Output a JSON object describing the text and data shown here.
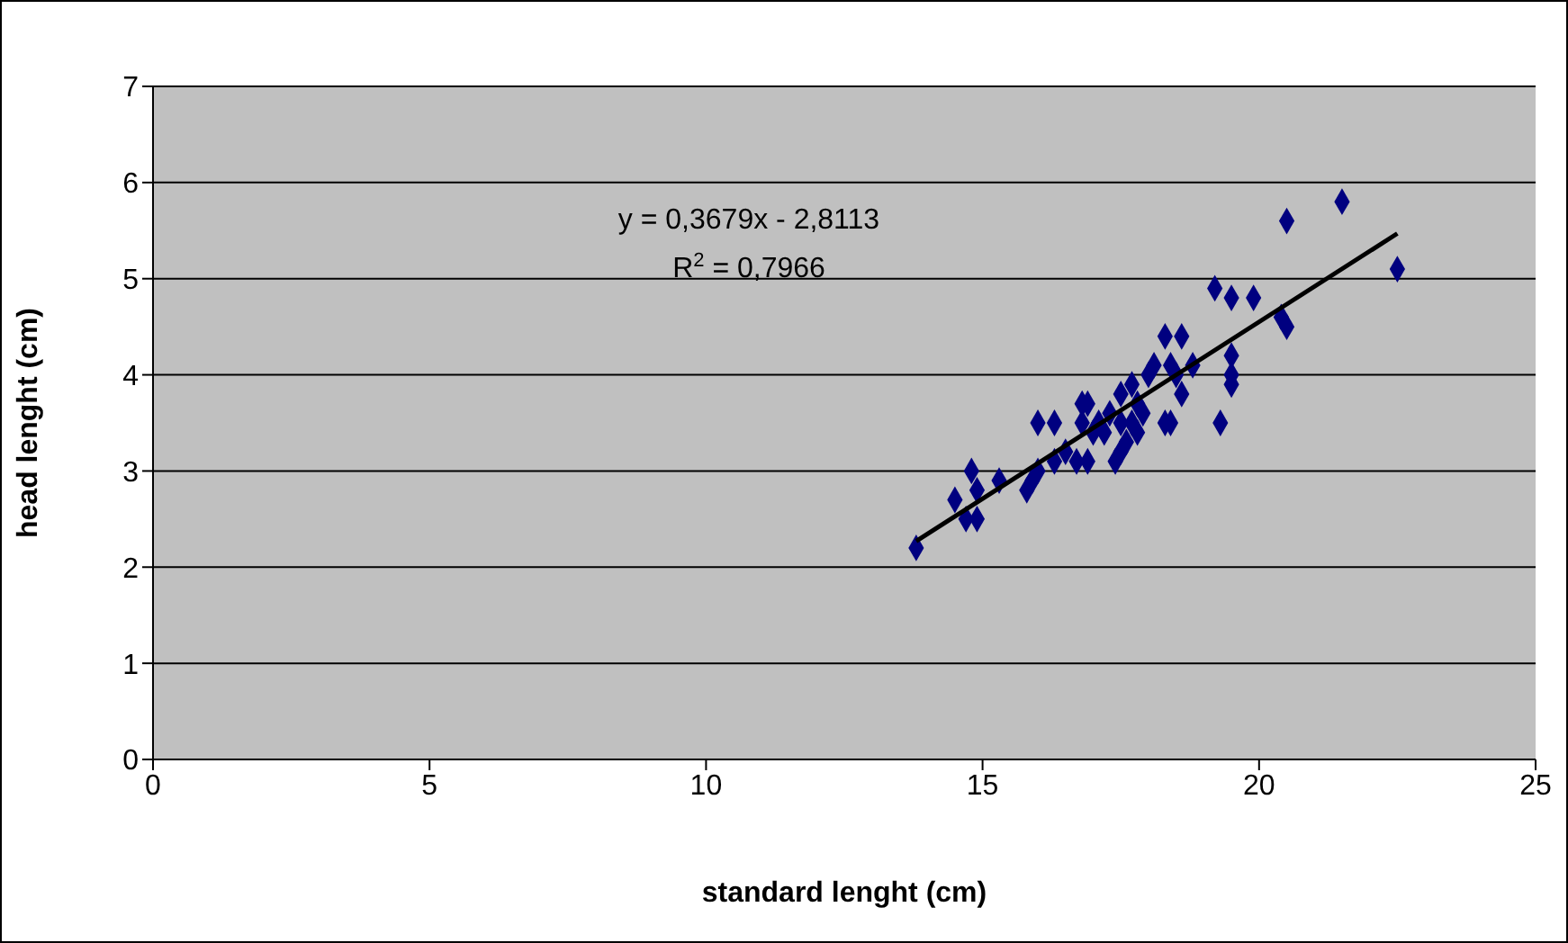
{
  "chart_data": {
    "type": "scatter",
    "xlabel": "standard lenght (cm)",
    "ylabel": "head lenght (cm)",
    "xlim": [
      0,
      25
    ],
    "xticks": [
      0,
      5,
      10,
      15,
      20,
      25
    ],
    "ylim": [
      0,
      7
    ],
    "yticks": [
      0,
      1,
      2,
      3,
      4,
      5,
      6,
      7
    ],
    "grid": "y",
    "annotations": [
      "y = 0,3679x - 2,8113",
      "R$^{2}$ = 0,7966"
    ],
    "series": [
      {
        "marker": "diamond",
        "color": "#000080",
        "x": [
          13.8,
          14.5,
          14.7,
          14.8,
          14.9,
          14.9,
          15.3,
          15.8,
          15.9,
          16.0,
          16.0,
          16.3,
          16.3,
          16.5,
          16.7,
          16.8,
          16.8,
          16.9,
          16.9,
          17.0,
          17.1,
          17.2,
          17.3,
          17.4,
          17.5,
          17.5,
          17.5,
          17.6,
          17.7,
          17.7,
          17.8,
          17.8,
          17.9,
          18.0,
          18.1,
          18.3,
          18.3,
          18.4,
          18.4,
          18.5,
          18.6,
          18.6,
          18.8,
          19.2,
          19.3,
          19.5,
          19.5,
          19.5,
          19.5,
          19.9,
          20.4,
          20.5,
          20.5,
          21.5,
          22.5
        ],
        "values": [
          2.2,
          2.7,
          2.5,
          3.0,
          2.5,
          2.8,
          2.9,
          2.8,
          2.9,
          3.5,
          3.0,
          3.5,
          3.1,
          3.2,
          3.1,
          3.5,
          3.7,
          3.7,
          3.1,
          3.4,
          3.5,
          3.4,
          3.6,
          3.1,
          3.2,
          3.5,
          3.8,
          3.3,
          3.9,
          3.5,
          3.4,
          3.7,
          3.6,
          4.0,
          4.1,
          4.4,
          3.5,
          3.5,
          4.1,
          4.0,
          4.4,
          3.8,
          4.1,
          4.9,
          3.5,
          4.8,
          4.0,
          4.2,
          3.9,
          4.8,
          4.6,
          4.5,
          5.6,
          5.8,
          5.1
        ]
      },
      {
        "type": "line",
        "marker": "none",
        "color": "#000000",
        "x": [
          13.8,
          22.5
        ],
        "values": [
          2.27,
          5.47
        ]
      }
    ]
  }
}
